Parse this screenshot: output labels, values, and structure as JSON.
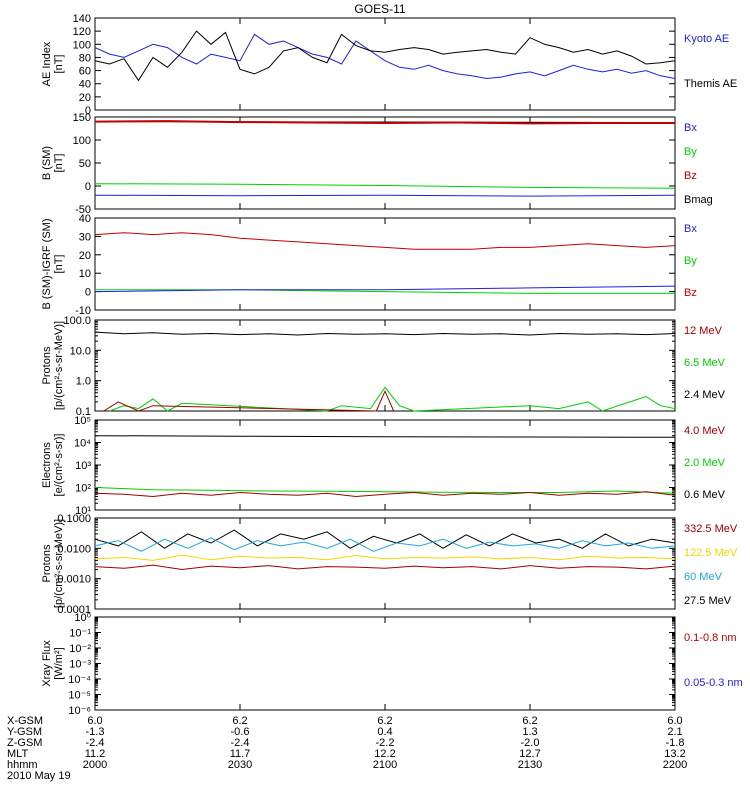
{
  "title": "GOES-11",
  "colors": {
    "black": "#000000",
    "blue": "#1f1fe0",
    "red": "#c00000",
    "green": "#00d000",
    "cyan": "#1aa8e0",
    "yellow": "#f2d600",
    "darkred": "#a00000"
  },
  "x_axis": {
    "ticks": [
      "2000",
      "2030",
      "2100",
      "2130",
      "2200"
    ],
    "xlim": [
      2000,
      2200
    ],
    "rows": [
      {
        "label": "X-GSM",
        "values": [
          "6.0",
          "6.2",
          "6.2",
          "6.2",
          "6.0"
        ]
      },
      {
        "label": "Y-GSM",
        "values": [
          "-1.3",
          "-0.6",
          "0.4",
          "1.3",
          "2.1"
        ]
      },
      {
        "label": "Z-GSM",
        "values": [
          "-2.4",
          "-2.4",
          "-2.2",
          "-2.0",
          "-1.8"
        ]
      },
      {
        "label": "MLT",
        "values": [
          "11.2",
          "11.7",
          "12.2",
          "12.7",
          "13.2"
        ]
      },
      {
        "label": "hhmm",
        "values": [
          "2000",
          "2030",
          "2100",
          "2130",
          "2200"
        ]
      }
    ],
    "date": "2010 May 19"
  },
  "chart_data": [
    {
      "type": "line",
      "ylabel": [
        "AE Index",
        "[nT]"
      ],
      "ylim": [
        0,
        140
      ],
      "yscale": "linear",
      "ticks": [
        "0",
        "20",
        "40",
        "60",
        "80",
        "100",
        "120",
        "140"
      ],
      "legend": [
        {
          "name": "Kyoto AE",
          "color": "blue"
        },
        {
          "name": "Themis AE",
          "color": "black"
        }
      ],
      "series": [
        {
          "name": "Kyoto AE",
          "color": "blue",
          "x": [
            2000,
            2005,
            2010,
            2015,
            2020,
            2025,
            2030,
            2035,
            2040,
            2045,
            2050,
            2055,
            2060,
            2065,
            2070,
            2075,
            2080,
            2085,
            2090,
            2095,
            2100,
            2105,
            2110,
            2115,
            2120,
            2125,
            2130,
            2135,
            2140,
            2145,
            2150,
            2155,
            2160,
            2165,
            2170,
            2175,
            2180,
            2185,
            2190,
            2195,
            2200
          ],
          "y": [
            95,
            85,
            80,
            90,
            100,
            95,
            80,
            70,
            85,
            80,
            75,
            115,
            100,
            105,
            95,
            85,
            80,
            70,
            105,
            90,
            75,
            65,
            62,
            68,
            60,
            55,
            52,
            48,
            50,
            55,
            58,
            52,
            60,
            68,
            62,
            58,
            62,
            56,
            60,
            52,
            48
          ]
        },
        {
          "name": "Themis AE",
          "color": "black",
          "x": [
            2000,
            2005,
            2010,
            2015,
            2020,
            2025,
            2030,
            2035,
            2040,
            2045,
            2050,
            2055,
            2060,
            2065,
            2070,
            2075,
            2080,
            2085,
            2090,
            2095,
            2100,
            2105,
            2110,
            2115,
            2120,
            2125,
            2130,
            2135,
            2140,
            2145,
            2150,
            2155,
            2160,
            2165,
            2170,
            2175,
            2180,
            2185,
            2190,
            2195,
            2200
          ],
          "y": [
            75,
            70,
            78,
            45,
            80,
            65,
            88,
            120,
            100,
            118,
            62,
            55,
            65,
            90,
            95,
            80,
            72,
            115,
            98,
            90,
            88,
            92,
            95,
            92,
            85,
            88,
            90,
            92,
            88,
            85,
            110,
            100,
            95,
            88,
            92,
            85,
            90,
            82,
            70,
            72,
            75
          ]
        }
      ]
    },
    {
      "type": "line",
      "ylabel": [
        "B (SM)",
        "[nT]"
      ],
      "ylim": [
        -50,
        150
      ],
      "yscale": "linear",
      "ticks": [
        "-50",
        "0",
        "50",
        "100",
        "150"
      ],
      "legend": [
        {
          "name": "Bx",
          "color": "blue"
        },
        {
          "name": "By",
          "color": "green"
        },
        {
          "name": "Bz",
          "color": "red"
        },
        {
          "name": "Bmag",
          "color": "black"
        }
      ],
      "series": [
        {
          "name": "Bmag",
          "color": "black",
          "x": [
            2000,
            2200
          ],
          "y": [
            140,
            138
          ]
        },
        {
          "name": "Bz",
          "color": "red",
          "x": [
            2000,
            2025,
            2050,
            2075,
            2100,
            2125,
            2150,
            2175,
            2200
          ],
          "y": [
            140,
            141,
            139,
            138,
            137,
            138,
            136,
            137,
            137
          ]
        },
        {
          "name": "By",
          "color": "green",
          "x": [
            2000,
            2050,
            2100,
            2150,
            2200
          ],
          "y": [
            5,
            4,
            1,
            -3,
            -5
          ]
        },
        {
          "name": "Bx",
          "color": "blue",
          "x": [
            2000,
            2050,
            2100,
            2150,
            2200
          ],
          "y": [
            -20,
            -21,
            -20,
            -22,
            -20
          ]
        }
      ]
    },
    {
      "type": "line",
      "ylabel": [
        "B (SM)-IGRF (SM)",
        "[nT]"
      ],
      "ylim": [
        -10,
        40
      ],
      "yscale": "linear",
      "ticks": [
        "-10",
        "0",
        "10",
        "20",
        "30",
        "40"
      ],
      "legend": [
        {
          "name": "Bx",
          "color": "blue"
        },
        {
          "name": "By",
          "color": "green"
        },
        {
          "name": "Bz",
          "color": "red"
        }
      ],
      "series": [
        {
          "name": "Bz",
          "color": "red",
          "x": [
            2000,
            2010,
            2020,
            2030,
            2040,
            2050,
            2060,
            2070,
            2080,
            2090,
            2100,
            2110,
            2120,
            2130,
            2140,
            2150,
            2160,
            2170,
            2180,
            2190,
            2200
          ],
          "y": [
            31,
            32,
            31,
            32,
            31,
            29,
            28,
            27,
            26,
            25,
            24,
            23,
            23,
            23,
            24,
            24,
            25,
            26,
            25,
            24,
            25
          ]
        },
        {
          "name": "By",
          "color": "green",
          "x": [
            2000,
            2050,
            2100,
            2150,
            2200
          ],
          "y": [
            1,
            1,
            0,
            -1,
            -1
          ]
        },
        {
          "name": "Bx",
          "color": "blue",
          "x": [
            2000,
            2050,
            2100,
            2150,
            2200
          ],
          "y": [
            0,
            1,
            1,
            2,
            3
          ]
        }
      ]
    },
    {
      "type": "line",
      "ylabel": [
        "Protons",
        "[p/(cm²-s-sr-MeV)]"
      ],
      "ylim": [
        0.1,
        100
      ],
      "yscale": "log",
      "ticks": [
        "0.1",
        "1.0",
        "10.0",
        "100.0"
      ],
      "legend": [
        {
          "name": "12 MeV",
          "color": "darkred"
        },
        {
          "name": "6.5 MeV",
          "color": "green"
        },
        {
          "name": "2.4 MeV",
          "color": "black"
        }
      ],
      "series": [
        {
          "name": "2.4 MeV",
          "color": "black",
          "x": [
            2000,
            2010,
            2020,
            2030,
            2040,
            2050,
            2060,
            2070,
            2080,
            2090,
            2100,
            2110,
            2120,
            2130,
            2140,
            2150,
            2160,
            2170,
            2180,
            2190,
            2200
          ],
          "y": [
            40,
            35,
            38,
            34,
            36,
            33,
            35,
            32,
            36,
            34,
            35,
            33,
            36,
            34,
            35,
            32,
            36,
            34,
            35,
            33,
            36
          ]
        },
        {
          "name": "6.5 MeV",
          "color": "green",
          "x": [
            2005,
            2010,
            2015,
            2020,
            2025,
            2030,
            2080,
            2085,
            2095,
            2100,
            2105,
            2110,
            2150,
            2160,
            2170,
            2175,
            2190,
            2195,
            2200
          ],
          "y": [
            0.1,
            0.15,
            0.12,
            0.25,
            0.1,
            0.18,
            0.1,
            0.15,
            0.12,
            0.6,
            0.15,
            0.1,
            0.15,
            0.12,
            0.2,
            0.1,
            0.3,
            0.15,
            0.12
          ]
        },
        {
          "name": "12 MeV",
          "color": "darkred",
          "x": [
            2003,
            2008,
            2015,
            2020,
            2097,
            2100,
            2103
          ],
          "y": [
            0.1,
            0.2,
            0.1,
            0.15,
            0.1,
            0.45,
            0.1
          ]
        }
      ]
    },
    {
      "type": "line",
      "ylabel": [
        "Electrons",
        "[e/(cm²-s-sr)]"
      ],
      "ylim": [
        10,
        100000
      ],
      "yscale": "log",
      "ticks": [
        "10¹",
        "10²",
        "10³",
        "10⁴",
        "10⁵"
      ],
      "legend": [
        {
          "name": "4.0 MeV",
          "color": "darkred"
        },
        {
          "name": "2.0 MeV",
          "color": "green"
        },
        {
          "name": "0.6 MeV",
          "color": "black"
        }
      ],
      "series": [
        {
          "name": "0.6 MeV",
          "color": "black",
          "x": [
            2000,
            2050,
            2100,
            2150,
            2200
          ],
          "y": [
            20000,
            19000,
            18000,
            17500,
            17000
          ]
        },
        {
          "name": "2.0 MeV",
          "color": "green",
          "x": [
            2000,
            2020,
            2040,
            2060,
            2080,
            2100,
            2120,
            2140,
            2160,
            2180,
            2200
          ],
          "y": [
            100,
            80,
            75,
            70,
            68,
            65,
            62,
            60,
            60,
            70,
            55
          ]
        },
        {
          "name": "4.0 MeV",
          "color": "darkred",
          "x": [
            2000,
            2010,
            2020,
            2030,
            2040,
            2050,
            2060,
            2070,
            2080,
            2090,
            2100,
            2110,
            2120,
            2130,
            2140,
            2150,
            2160,
            2170,
            2180,
            2190,
            2200
          ],
          "y": [
            55,
            50,
            40,
            55,
            45,
            60,
            50,
            45,
            55,
            40,
            50,
            60,
            45,
            55,
            50,
            60,
            45,
            55,
            50,
            65,
            45
          ]
        }
      ]
    },
    {
      "type": "line",
      "ylabel": [
        "Protons",
        "[p/(cm²-s-sr-MeV)]"
      ],
      "ylim": [
        0.0001,
        0.1
      ],
      "yscale": "log",
      "ticks": [
        "0.0001",
        "0.0010",
        "0.0100",
        "0.1000"
      ],
      "legend": [
        {
          "name": "332.5 MeV",
          "color": "darkred"
        },
        {
          "name": "122.5 MeV",
          "color": "yellow"
        },
        {
          "name": "60 MeV",
          "color": "cyan"
        },
        {
          "name": "27.5 MeV",
          "color": "black"
        }
      ],
      "series": [
        {
          "name": "27.5 MeV",
          "color": "black",
          "x": [
            2000,
            2008,
            2016,
            2024,
            2032,
            2040,
            2048,
            2056,
            2064,
            2072,
            2080,
            2088,
            2096,
            2104,
            2112,
            2120,
            2128,
            2136,
            2144,
            2152,
            2160,
            2168,
            2176,
            2184,
            2192,
            2200
          ],
          "y": [
            0.02,
            0.012,
            0.035,
            0.01,
            0.03,
            0.015,
            0.04,
            0.012,
            0.03,
            0.02,
            0.035,
            0.01,
            0.025,
            0.015,
            0.03,
            0.01,
            0.028,
            0.012,
            0.03,
            0.015,
            0.02,
            0.01,
            0.03,
            0.012,
            0.02,
            0.015
          ]
        },
        {
          "name": "60 MeV",
          "color": "cyan",
          "x": [
            2000,
            2008,
            2016,
            2024,
            2032,
            2040,
            2048,
            2056,
            2064,
            2072,
            2080,
            2088,
            2096,
            2104,
            2112,
            2120,
            2128,
            2136,
            2144,
            2152,
            2160,
            2168,
            2176,
            2184,
            2192,
            2200
          ],
          "y": [
            0.012,
            0.018,
            0.008,
            0.02,
            0.01,
            0.022,
            0.009,
            0.018,
            0.012,
            0.016,
            0.01,
            0.02,
            0.008,
            0.015,
            0.012,
            0.02,
            0.01,
            0.016,
            0.012,
            0.014,
            0.01,
            0.018,
            0.012,
            0.015,
            0.01,
            0.012
          ]
        },
        {
          "name": "122.5 MeV",
          "color": "yellow",
          "x": [
            2000,
            2010,
            2020,
            2030,
            2040,
            2050,
            2060,
            2070,
            2080,
            2090,
            2100,
            2110,
            2120,
            2130,
            2140,
            2150,
            2160,
            2170,
            2180,
            2190,
            2200
          ],
          "y": [
            0.0045,
            0.005,
            0.004,
            0.006,
            0.0042,
            0.0055,
            0.0048,
            0.005,
            0.0042,
            0.0058,
            0.0045,
            0.005,
            0.0048,
            0.0052,
            0.0045,
            0.005,
            0.0042,
            0.0055,
            0.0048,
            0.005,
            0.0045
          ]
        },
        {
          "name": "332.5 MeV",
          "color": "darkred",
          "x": [
            2000,
            2010,
            2020,
            2030,
            2040,
            2050,
            2060,
            2070,
            2080,
            2090,
            2100,
            2110,
            2120,
            2130,
            2140,
            2150,
            2160,
            2170,
            2180,
            2190,
            2200
          ],
          "y": [
            0.0025,
            0.0022,
            0.0028,
            0.002,
            0.0026,
            0.0023,
            0.0027,
            0.0021,
            0.0025,
            0.0024,
            0.0022,
            0.0026,
            0.0023,
            0.0025,
            0.0021,
            0.0027,
            0.0022,
            0.0025,
            0.0024,
            0.0021,
            0.0026
          ]
        }
      ]
    },
    {
      "type": "line",
      "ylabel": [
        "Xray Flux",
        "[W/m²]"
      ],
      "ylim": [
        1e-06,
        1
      ],
      "yscale": "log",
      "ticks": [
        "10⁻⁶",
        "10⁻⁵",
        "10⁻⁴",
        "10⁻³",
        "10⁻²",
        "10⁻¹",
        "10⁰"
      ],
      "legend": [
        {
          "name": "0.1-0.8 nm",
          "color": "red"
        },
        {
          "name": "0.05-0.3 nm",
          "color": "blue"
        }
      ],
      "series": []
    }
  ]
}
